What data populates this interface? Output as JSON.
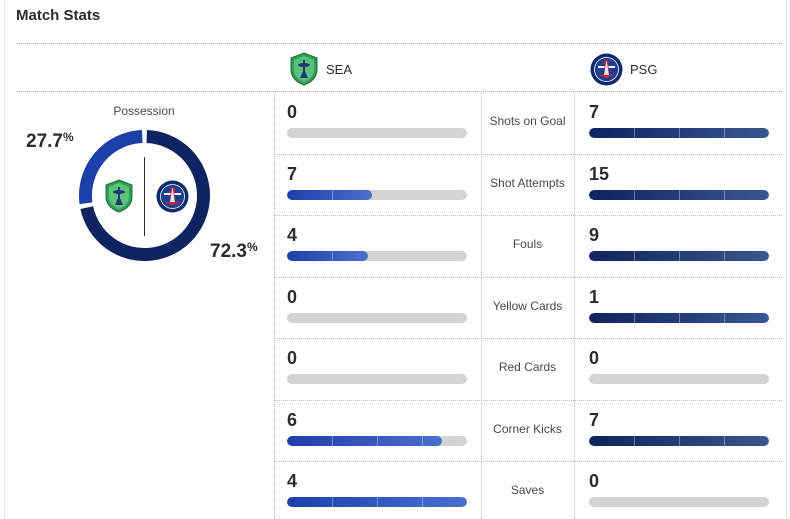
{
  "title": "Match Stats",
  "teams": {
    "home": {
      "abbr": "SEA",
      "logo_icon": "sounders-crest-icon",
      "color": "#1d3faa",
      "color_light": "#4a6fd0"
    },
    "away": {
      "abbr": "PSG",
      "logo_icon": "psg-crest-icon",
      "color": "#0e2360",
      "color_light": "#3a5691"
    }
  },
  "possession": {
    "label": "Possession",
    "home_pct": 27.7,
    "home_pct_text": "27.7",
    "away_pct": 72.3,
    "away_pct_text": "72.3",
    "unit": "%"
  },
  "stats": [
    {
      "label": "Shots on Goal",
      "home": "0",
      "away": "7",
      "home_frac": 0,
      "away_frac": 1
    },
    {
      "label": "Shot Attempts",
      "home": "7",
      "away": "15",
      "home_frac": 0.47,
      "away_frac": 1
    },
    {
      "label": "Fouls",
      "home": "4",
      "away": "9",
      "home_frac": 0.45,
      "away_frac": 1
    },
    {
      "label": "Yellow Cards",
      "home": "0",
      "away": "1",
      "home_frac": 0,
      "away_frac": 1
    },
    {
      "label": "Red Cards",
      "home": "0",
      "away": "0",
      "home_frac": 0,
      "away_frac": 0
    },
    {
      "label": "Corner Kicks",
      "home": "6",
      "away": "7",
      "home_frac": 0.86,
      "away_frac": 1
    },
    {
      "label": "Saves",
      "home": "4",
      "away": "0",
      "home_frac": 1,
      "away_frac": 0
    }
  ]
}
